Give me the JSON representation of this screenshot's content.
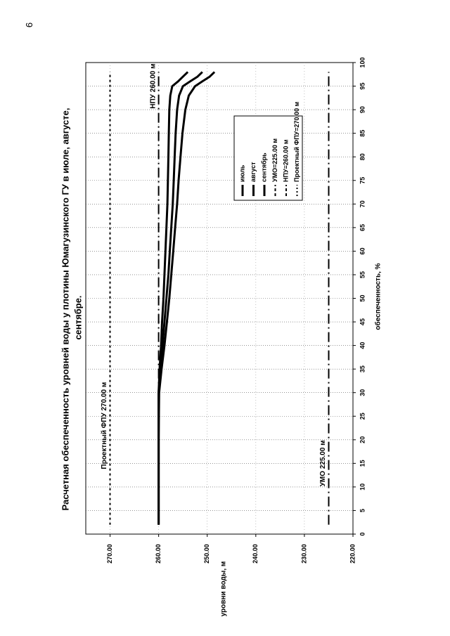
{
  "page_number": "9",
  "chart_data": {
    "type": "line",
    "orientation": "rotated 90 degrees clockwise",
    "title_lines": [
      "Расчетная обеспеченность уровней воды у плотины Юмагузинского ГУ в июле, августе,",
      "сентябре."
    ],
    "xlabel": "обеспеченность, %",
    "ylabel": "уровни воды, м",
    "xlim": [
      0,
      100
    ],
    "ylim": [
      220,
      275
    ],
    "x_ticks": [
      "0",
      "5",
      "10",
      "15",
      "20",
      "25",
      "30",
      "35",
      "40",
      "45",
      "50",
      "55",
      "60",
      "65",
      "70",
      "75",
      "80",
      "85",
      "90",
      "95",
      "100"
    ],
    "y_ticks": [
      "220.00",
      "230.00",
      "240.00",
      "250.00",
      "260.00",
      "270.00"
    ],
    "grid": true,
    "legend_position": "right",
    "series": [
      {
        "name": "июль",
        "style": "solid",
        "x": [
          2,
          20,
          30,
          35,
          40,
          45,
          50,
          55,
          60,
          65,
          70,
          75,
          80,
          85,
          90,
          93,
          95,
          96,
          97,
          98
        ],
        "y": [
          260,
          260,
          260,
          259.8,
          259.5,
          259.3,
          259,
          258.8,
          258.6,
          258.4,
          258.2,
          258.1,
          258,
          257.9,
          257.8,
          257.6,
          257.2,
          256,
          255,
          254
        ]
      },
      {
        "name": "август",
        "style": "solid",
        "x": [
          2,
          20,
          30,
          35,
          40,
          45,
          50,
          55,
          60,
          65,
          70,
          75,
          80,
          85,
          90,
          93,
          95,
          96,
          97,
          98
        ],
        "y": [
          260,
          260,
          260,
          259.6,
          259.2,
          258.8,
          258.4,
          258,
          257.7,
          257.4,
          257.1,
          256.9,
          256.7,
          256.5,
          256.2,
          255.8,
          255,
          253.5,
          252,
          251
        ]
      },
      {
        "name": "сентябрь",
        "style": "solid",
        "x": [
          2,
          20,
          30,
          35,
          40,
          45,
          50,
          55,
          60,
          65,
          70,
          75,
          80,
          85,
          90,
          93,
          95,
          96,
          97,
          98
        ],
        "y": [
          260,
          260,
          259.9,
          259.4,
          258.8,
          258.3,
          257.8,
          257.4,
          257,
          256.6,
          256.2,
          255.9,
          255.5,
          255.1,
          254.5,
          253.8,
          252.5,
          251,
          249.5,
          248.5
        ]
      },
      {
        "name": "УМО=225.00 м",
        "style": "dash-dot",
        "x": [
          2,
          98
        ],
        "y": [
          225,
          225
        ]
      },
      {
        "name": "НПУ=260.00 м",
        "style": "dash-dot",
        "x": [
          2,
          98
        ],
        "y": [
          260,
          260
        ]
      },
      {
        "name": "Проектный ФПУ=270.00 м",
        "style": "dotted",
        "x": [
          2,
          98
        ],
        "y": [
          270,
          270
        ]
      }
    ],
    "annotations": [
      {
        "text": "НПУ 260.00 м",
        "x": 95,
        "y": 260
      },
      {
        "text": "Проектный ФПУ 270.00 м",
        "x": 23,
        "y": 270
      },
      {
        "text": "УМО 225.00 м",
        "x": 15,
        "y": 225
      }
    ]
  }
}
